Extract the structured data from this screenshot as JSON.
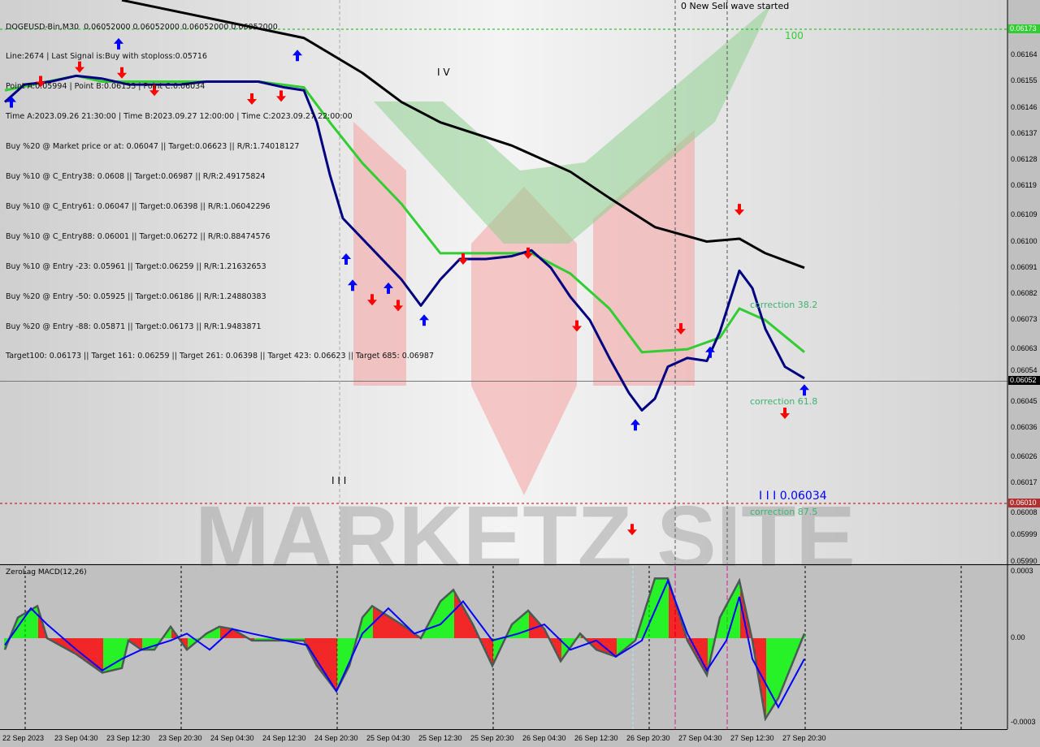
{
  "header": {
    "symbol_line": "DOGEUSD-Bin,M30  0.06052000 0.06052000 0.06052000 0.06052000",
    "info_lines": [
      "Line:2674 | Last Signal is:Buy with stoploss:0.05716",
      "Point A:0.05994 | Point B:0.06133 | Point C:0.06034",
      "Time A:2023.09.26 21:30:00 | Time B:2023.09.27 12:00:00 | Time C:2023.09.27 22:00:00",
      "Buy %20 @ Market price or at: 0.06047 || Target:0.06623 || R/R:1.74018127",
      "Buy %10 @ C_Entry38: 0.0608 || Target:0.06987 || R/R:2.49175824",
      "Buy %10 @ C_Entry61: 0.06047 || Target:0.06398 || R/R:1.06042296",
      "Buy %10 @ C_Entry88: 0.06001 || Target:0.06272 || R/R:0.88474576",
      "Buy %10 @ Entry -23: 0.05961 || Target:0.06259 || R/R:1.21632653",
      "Buy %20 @ Entry -50: 0.05925 || Target:0.06186 || R/R:1.24880383",
      "Buy %20 @ Entry -88: 0.05871 || Target:0.06173 || R/R:1.9483871",
      "Target100: 0.06173 || Target 161: 0.06259 || Target 261: 0.06398 || Target 423: 0.06623 || Target 685: 0.06987"
    ]
  },
  "annotations": {
    "new_wave": "0 New Sell wave started",
    "level_100": "100",
    "wave_iv": "I V",
    "wave_iii": "I I I",
    "wave_c_point": "I I I 0.06034",
    "correction_382": "correction 38.2",
    "correction_618": "correction 61.8",
    "correction_875": "correction 87.5"
  },
  "watermark": "MARKETZ SITE",
  "price_axis": {
    "ticks": [
      "0.06164",
      "0.06155",
      "0.06146",
      "0.06137",
      "0.06128",
      "0.06119",
      "0.06109",
      "0.06100",
      "0.06091",
      "0.06082",
      "0.06073",
      "0.06063",
      "0.06054",
      "0.06045",
      "0.06036",
      "0.06026",
      "0.06017",
      "0.06008",
      "0.05999",
      "0.05990"
    ],
    "target_label": "0.06173",
    "current_label": "0.06052",
    "stop_label": "0.06010"
  },
  "time_axis": [
    "22 Sep 2023",
    "23 Sep 04:30",
    "23 Sep 12:30",
    "23 Sep 20:30",
    "24 Sep 04:30",
    "24 Sep 12:30",
    "24 Sep 20:30",
    "25 Sep 04:30",
    "25 Sep 12:30",
    "25 Sep 20:30",
    "26 Sep 04:30",
    "26 Sep 12:30",
    "26 Sep 20:30",
    "27 Sep 04:30",
    "27 Sep 12:30",
    "27 Sep 20:30"
  ],
  "colors": {
    "fast_ma": "#000080",
    "slow_ma": "#32cd32",
    "long_ma": "#000000",
    "buy": "#0000ff",
    "sell": "#ff0000",
    "macd_up": "#00ff00",
    "macd_down": "#ff0000",
    "signal": "#0000ff",
    "target_line": "#00c000",
    "stop_line": "#c00000"
  },
  "chart_data": [
    {
      "type": "line",
      "title": "DOGEUSD-Bin,M30",
      "ylim": [
        0.05988,
        0.06186
      ],
      "series": [
        {
          "points": [
            [
              "09-22 17:30",
              0.06148
            ],
            [
              "09-22 20:30",
              0.06154
            ],
            [
              "09-23 00:30",
              0.06155
            ],
            [
              "09-23 04:30",
              0.06157
            ],
            [
              "09-23 08:30",
              0.06156
            ],
            [
              "09-23 12:30",
              0.06154
            ],
            [
              "09-23 16:30",
              0.06154
            ],
            [
              "09-23 20:30",
              0.06154
            ],
            [
              "09-24 00:30",
              0.06155
            ],
            [
              "09-24 04:30",
              0.06155
            ],
            [
              "09-24 08:30",
              0.06155
            ],
            [
              "09-24 12:30",
              0.06153
            ],
            [
              "09-24 15:30",
              0.06152
            ],
            [
              "09-24 17:30",
              0.06141
            ],
            [
              "09-24 19:30",
              0.06123
            ],
            [
              "09-24 21:30",
              0.06108
            ],
            [
              "09-25 00:30",
              0.06101
            ],
            [
              "09-25 03:30",
              0.06094
            ],
            [
              "09-25 06:30",
              0.06087
            ],
            [
              "09-25 09:30",
              0.06078
            ],
            [
              "09-25 12:30",
              0.06087
            ],
            [
              "09-25 15:30",
              0.06094
            ],
            [
              "09-25 19:30",
              0.06094
            ],
            [
              "09-25 23:30",
              0.06095
            ],
            [
              "09-26 02:30",
              0.06097
            ],
            [
              "09-26 05:30",
              0.06091
            ],
            [
              "09-26 08:30",
              0.06081
            ],
            [
              "09-26 11:30",
              0.06073
            ],
            [
              "09-26 14:30",
              0.0606
            ],
            [
              "09-26 17:30",
              0.06048
            ],
            [
              "09-26 19:30",
              0.06042
            ],
            [
              "09-26 21:30",
              0.06046
            ],
            [
              "09-26 23:30",
              0.06057
            ],
            [
              "09-27 02:30",
              0.0606
            ],
            [
              "09-27 05:30",
              0.06059
            ],
            [
              "09-27 07:30",
              0.06069
            ],
            [
              "09-27 10:30",
              0.0609
            ],
            [
              "09-27 12:30",
              0.06084
            ],
            [
              "09-27 14:30",
              0.0607
            ],
            [
              "09-27 17:30",
              0.06057
            ],
            [
              "09-27 20:30",
              0.06053
            ]
          ]
        },
        {
          "points": [
            [
              "09-22 17:30",
              0.06152
            ],
            [
              "09-23 04:30",
              0.06157
            ],
            [
              "09-23 08:30",
              0.06155
            ],
            [
              "09-23 20:30",
              0.06155
            ],
            [
              "09-24 08:30",
              0.06155
            ],
            [
              "09-24 15:30",
              0.06153
            ],
            [
              "09-24 19:30",
              0.06141
            ],
            [
              "09-25 00:30",
              0.06127
            ],
            [
              "09-25 06:30",
              0.06113
            ],
            [
              "09-25 12:30",
              0.06096
            ],
            [
              "09-25 19:30",
              0.06096
            ],
            [
              "09-26 02:30",
              0.06096
            ],
            [
              "09-26 08:30",
              0.06089
            ],
            [
              "09-26 14:30",
              0.06077
            ],
            [
              "09-26 19:30",
              0.06062
            ],
            [
              "09-27 02:30",
              0.06063
            ],
            [
              "09-27 07:30",
              0.06067
            ],
            [
              "09-27 10:30",
              0.06077
            ],
            [
              "09-27 14:30",
              0.06073
            ],
            [
              "09-27 20:30",
              0.06062
            ]
          ]
        },
        {
          "points": [
            [
              "09-23 11:30",
              0.06183
            ],
            [
              "09-24 00:30",
              0.06177
            ],
            [
              "09-24 15:30",
              0.0617
            ],
            [
              "09-25 00:30",
              0.06158
            ],
            [
              "09-25 06:30",
              0.06148
            ],
            [
              "09-25 12:30",
              0.06141
            ],
            [
              "09-25 23:30",
              0.06133
            ],
            [
              "09-26 08:30",
              0.06124
            ],
            [
              "09-26 14:30",
              0.06115
            ],
            [
              "09-26 21:30",
              0.06105
            ],
            [
              "09-27 05:30",
              0.061
            ],
            [
              "09-27 10:30",
              0.06101
            ],
            [
              "09-27 14:30",
              0.06096
            ],
            [
              "09-27 20:30",
              0.06091
            ]
          ]
        }
      ],
      "levels": {
        "target": 0.06173,
        "current": 0.06052,
        "stop": 0.0601
      },
      "buy_signals": [
        [
          "09-22 18:30",
          0.06148
        ],
        [
          "09-23 11:00",
          0.06168
        ],
        [
          "09-24 14:30",
          0.06164
        ],
        [
          "09-24 22:00",
          0.06094
        ],
        [
          "09-24 23:00",
          0.06085
        ],
        [
          "09-25 04:30",
          0.06084
        ],
        [
          "09-25 10:00",
          0.06073
        ],
        [
          "09-26 18:30",
          0.06037
        ],
        [
          "09-27 06:00",
          0.06062
        ],
        [
          "09-27 20:30",
          0.06049
        ]
      ],
      "sell_signals": [
        [
          "09-22 23:00",
          0.06155
        ],
        [
          "09-23 05:00",
          0.0616
        ],
        [
          "09-23 11:30",
          0.06158
        ],
        [
          "09-23 16:30",
          0.06152
        ],
        [
          "09-24 07:30",
          0.06149
        ],
        [
          "09-24 12:00",
          0.0615
        ],
        [
          "09-25 02:00",
          0.0608
        ],
        [
          "09-25 06:00",
          0.06078
        ],
        [
          "09-25 16:00",
          0.06094
        ],
        [
          "09-26 02:00",
          0.06096
        ],
        [
          "09-26 09:30",
          0.06071
        ],
        [
          "09-27 01:30",
          0.0607
        ],
        [
          "09-26 18:00",
          0.06001
        ],
        [
          "09-27 10:30",
          0.06111
        ],
        [
          "09-27 17:30",
          0.06041
        ]
      ]
    },
    {
      "type": "bar",
      "title": "ZeroLag MACD(12,26)",
      "ylim": [
        -0.0003,
        0.0003
      ],
      "y_ticks": [
        "0.0003",
        "0.00",
        "-0.0003"
      ],
      "macd": [
        [
          "09-22 17:30",
          -5e-05
        ],
        [
          "09-22 19:30",
          9e-05
        ],
        [
          "09-22 22:30",
          0.00014
        ],
        [
          "09-23 00:00",
          0.0
        ],
        [
          "09-23 04:30",
          -7e-05
        ],
        [
          "09-23 08:30",
          -0.00015
        ],
        [
          "09-23 11:30",
          -0.00013
        ],
        [
          "09-23 12:30",
          -1e-05
        ],
        [
          "09-23 14:30",
          -5e-05
        ],
        [
          "09-23 16:30",
          -5e-05
        ],
        [
          "09-23 19:00",
          5e-05
        ],
        [
          "09-23 21:30",
          -5e-05
        ],
        [
          "09-24 00:30",
          2e-05
        ],
        [
          "09-24 02:30",
          5e-05
        ],
        [
          "09-24 04:30",
          4e-05
        ],
        [
          "09-24 07:30",
          -1e-05
        ],
        [
          "09-24 12:30",
          -1e-05
        ],
        [
          "09-24 15:30",
          -1e-05
        ],
        [
          "09-24 17:30",
          -0.00012
        ],
        [
          "09-24 20:30",
          -0.00023
        ],
        [
          "09-24 22:30",
          -0.00012
        ],
        [
          "09-25 00:30",
          9e-05
        ],
        [
          "09-25 02:00",
          0.00014
        ],
        [
          "09-25 06:30",
          6e-05
        ],
        [
          "09-25 09:30",
          0.0
        ],
        [
          "09-25 12:30",
          0.00016
        ],
        [
          "09-25 14:30",
          0.00021
        ],
        [
          "09-25 17:30",
          6e-05
        ],
        [
          "09-25 20:30",
          -0.00012
        ],
        [
          "09-25 23:30",
          6e-05
        ],
        [
          "09-26 02:00",
          0.00012
        ],
        [
          "09-26 04:30",
          4e-05
        ],
        [
          "09-26 07:00",
          -0.0001
        ],
        [
          "09-26 10:00",
          2e-05
        ],
        [
          "09-26 12:30",
          -5e-05
        ],
        [
          "09-26 15:30",
          -8e-05
        ],
        [
          "09-26 18:30",
          -1e-05
        ],
        [
          "09-26 21:30",
          0.00026
        ],
        [
          "09-26 23:30",
          0.00026
        ],
        [
          "09-27 02:30",
          -1e-05
        ],
        [
          "09-27 05:30",
          -0.00016
        ],
        [
          "09-27 07:30",
          9e-05
        ],
        [
          "09-27 10:30",
          0.00025
        ],
        [
          "09-27 12:30",
          -1e-05
        ],
        [
          "09-27 14:30",
          -0.00035
        ],
        [
          "09-27 16:30",
          -0.00026
        ],
        [
          "09-27 20:30",
          2e-05
        ]
      ],
      "signal": [
        [
          "09-22 17:30",
          -3e-05
        ],
        [
          "09-22 21:30",
          0.00013
        ],
        [
          "09-23 00:00",
          6e-05
        ],
        [
          "09-23 04:30",
          -5e-05
        ],
        [
          "09-23 08:30",
          -0.00014
        ],
        [
          "09-23 11:30",
          -9e-05
        ],
        [
          "09-23 14:30",
          -5e-05
        ],
        [
          "09-23 19:00",
          -1e-05
        ],
        [
          "09-23 21:30",
          2e-05
        ],
        [
          "09-24 01:00",
          -5e-05
        ],
        [
          "09-24 04:30",
          4e-05
        ],
        [
          "09-24 07:30",
          2e-05
        ],
        [
          "09-24 12:30",
          -1e-05
        ],
        [
          "09-24 16:00",
          -3e-05
        ],
        [
          "09-24 20:30",
          -0.00023
        ],
        [
          "09-25 00:30",
          2e-05
        ],
        [
          "09-25 04:30",
          0.00013
        ],
        [
          "09-25 08:30",
          2e-05
        ],
        [
          "09-25 12:30",
          6e-05
        ],
        [
          "09-25 16:00",
          0.00016
        ],
        [
          "09-25 20:30",
          -1e-05
        ],
        [
          "09-26 00:30",
          2e-05
        ],
        [
          "09-26 04:30",
          6e-05
        ],
        [
          "09-26 08:30",
          -5e-05
        ],
        [
          "09-26 12:30",
          -1e-05
        ],
        [
          "09-26 15:30",
          -8e-05
        ],
        [
          "09-26 19:30",
          -1e-05
        ],
        [
          "09-26 23:30",
          0.00025
        ],
        [
          "09-27 02:30",
          2e-05
        ],
        [
          "09-27 05:30",
          -0.00014
        ],
        [
          "09-27 08:30",
          -1e-05
        ],
        [
          "09-27 10:30",
          0.00018
        ],
        [
          "09-27 12:30",
          -9e-05
        ],
        [
          "09-27 16:30",
          -0.0003
        ],
        [
          "09-27 20:30",
          -9e-05
        ]
      ]
    }
  ]
}
